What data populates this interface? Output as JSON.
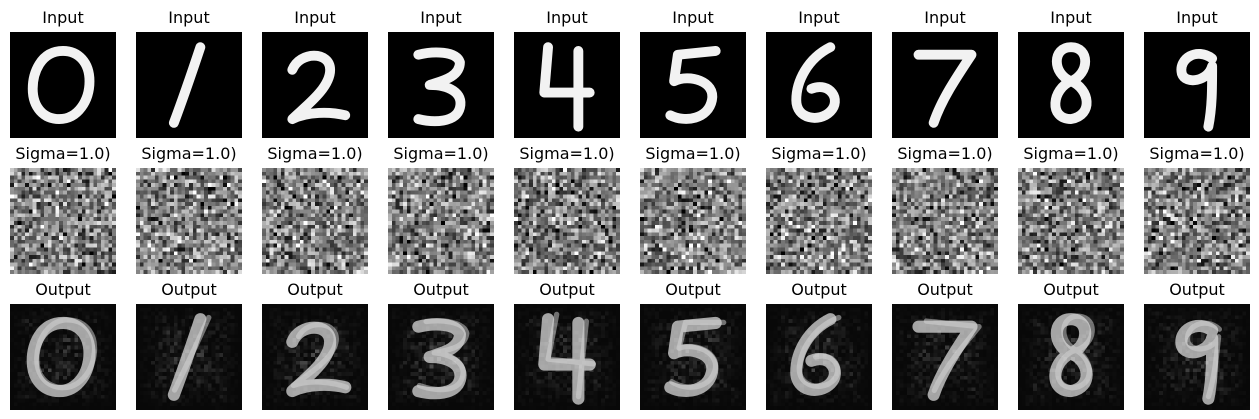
{
  "rows": [
    {
      "title": "Input",
      "style": "digit"
    },
    {
      "title": "Sigma=1.0)",
      "style": "noise"
    },
    {
      "title": "Output",
      "style": "recon"
    }
  ],
  "digits": [
    "0",
    "1",
    "2",
    "3",
    "4",
    "5",
    "6",
    "7",
    "8",
    "9"
  ],
  "noise_sigma": 1.0
}
